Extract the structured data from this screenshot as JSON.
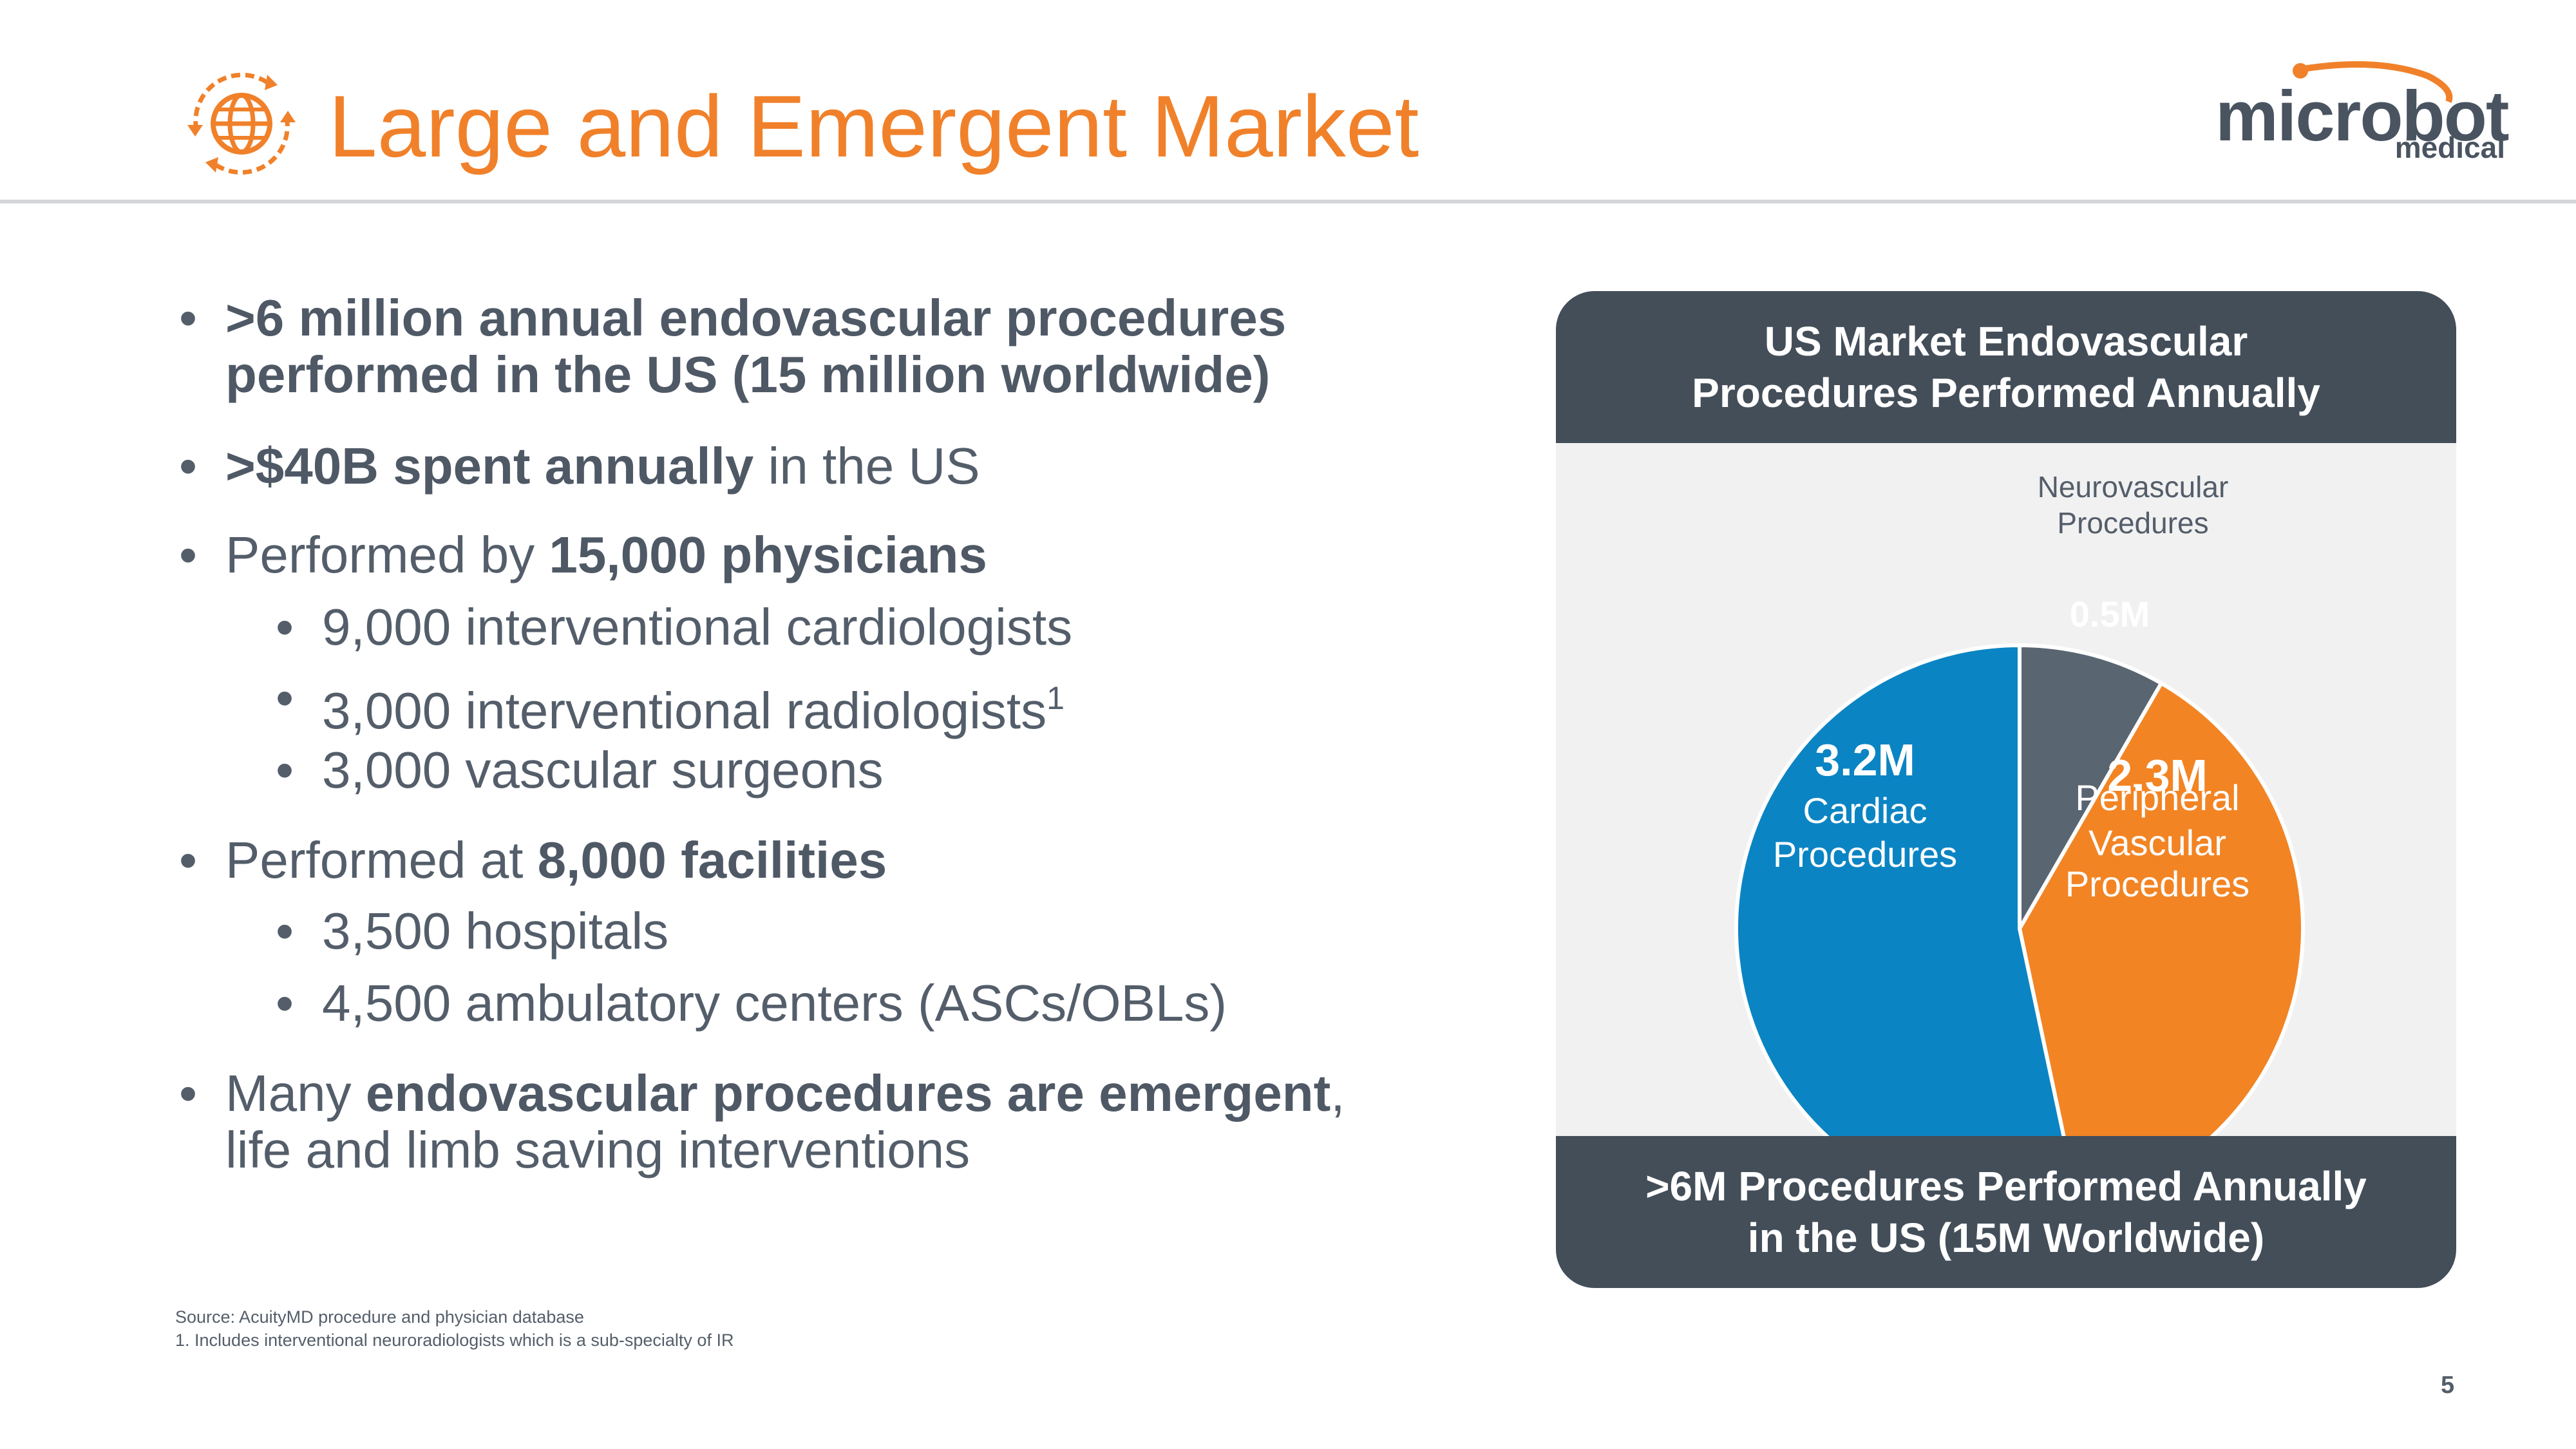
{
  "header": {
    "title": "Large and Emergent Market",
    "logo_word": "microbot",
    "logo_sub": "medical",
    "accent_color": "#f0812a",
    "icon": "globe-cycle-icon"
  },
  "bullets": [
    {
      "bold": ">6 million annual endovascular procedures",
      "text": ""
    },
    {
      "bold": "performed in the US (15 million worldwide)",
      "text": ""
    },
    {
      "bold": ">$40B spent annually",
      "text": " in the US"
    },
    {
      "pre": "Performed by ",
      "bold": "15,000 physicians"
    },
    {
      "text": "9,000 interventional cardiologists"
    },
    {
      "text": "3,000 interventional radiologists",
      "sup": "1"
    },
    {
      "text": "3,000 vascular surgeons"
    },
    {
      "pre": "Performed at ",
      "bold": "8,000 facilities"
    },
    {
      "text": "3,500 hospitals"
    },
    {
      "text": "4,500 ambulatory centers (ASCs/OBLs)"
    },
    {
      "pre": "Many ",
      "bold": "endovascular procedures are emergent",
      "post": ","
    },
    {
      "text": "life and limb saving interventions"
    }
  ],
  "panel": {
    "title_line1": "US Market Endovascular",
    "title_line2": "Procedures Performed Annually",
    "footer_line1": ">6M Procedures Performed Annually",
    "footer_line2": "in the US (15M Worldwide)",
    "neuro_label_line1": "Neurovascular",
    "neuro_label_line2": "Procedures"
  },
  "chart_data": {
    "type": "pie",
    "title": "US Market Endovascular Procedures Performed Annually",
    "slices": [
      {
        "value_label": "0.5M",
        "value": 0.5,
        "name": "Neurovascular Procedures",
        "color": "#5a6572"
      },
      {
        "value_label": "2.3M",
        "name_lines": [
          "Peripheral",
          "Vascular",
          "Procedures"
        ],
        "value": 2.3,
        "name": "Peripheral Vascular Procedures",
        "color": "#f28424"
      },
      {
        "value_label": "3.2M",
        "name_lines": [
          "Cardiac",
          "Procedures"
        ],
        "value": 3.2,
        "name": "Cardiac Procedures",
        "color": "#0b84c3"
      }
    ]
  },
  "footnotes": {
    "source": "Source: AcuityMD procedure and physician database",
    "note1": "1.  Includes interventional neuroradiologists which is a sub-specialty of IR"
  },
  "page_number": "5"
}
